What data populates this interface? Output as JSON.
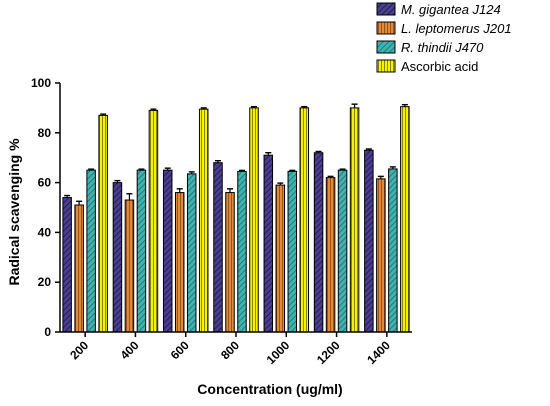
{
  "chart_data": {
    "type": "bar",
    "xlabel": "Concentration (ug/ml)",
    "ylabel": "Radical scavenging %",
    "ylim": [
      0,
      100
    ],
    "yticks": [
      0,
      20,
      40,
      60,
      80,
      100
    ],
    "categories": [
      "200",
      "400",
      "600",
      "800",
      "1000",
      "1200",
      "1400"
    ],
    "legend_position": "top-right",
    "series": [
      {
        "name": "M. gigantea J124",
        "italic": true,
        "color": "#4a3f8f",
        "pattern": "diag",
        "values": [
          54,
          60,
          65,
          68,
          71,
          72,
          73
        ],
        "errors": [
          0.8,
          0.8,
          0.8,
          0.8,
          1.0,
          0.5,
          0.5
        ]
      },
      {
        "name": "L. leptomerus J201",
        "italic": true,
        "color": "#e08a3a",
        "pattern": "vert",
        "values": [
          51,
          53,
          56,
          56,
          59,
          62,
          61.5
        ],
        "errors": [
          1.5,
          2.5,
          1.5,
          1.5,
          0.8,
          0.5,
          1.0
        ]
      },
      {
        "name": "R. thindii J470",
        "italic": true,
        "color": "#3fb3b0",
        "pattern": "diag",
        "values": [
          65,
          65,
          63.5,
          64.5,
          64.5,
          65,
          65.5
        ],
        "errors": [
          0.4,
          0.4,
          0.8,
          0.4,
          0.4,
          0.4,
          0.8
        ]
      },
      {
        "name": "Ascorbic acid",
        "italic": false,
        "color": "#f5f200",
        "pattern": "vert",
        "values": [
          87,
          89,
          89.5,
          90,
          90,
          90,
          90.5
        ],
        "errors": [
          0.5,
          0.5,
          0.5,
          0.5,
          0.5,
          1.5,
          0.8
        ]
      }
    ]
  }
}
